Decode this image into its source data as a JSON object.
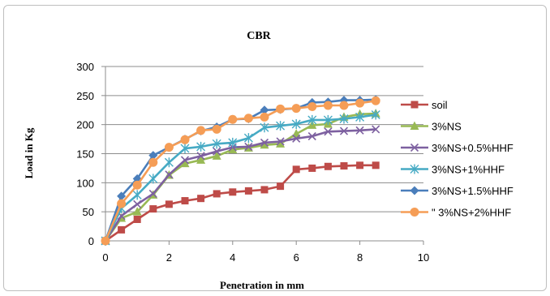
{
  "chart_data": {
    "type": "line",
    "title": "CBR",
    "xlabel": "Penetration in mm",
    "ylabel": "Load in Kg",
    "xlim": [
      0,
      10
    ],
    "ylim": [
      0,
      300
    ],
    "xticks": [
      0,
      2,
      4,
      6,
      8,
      10
    ],
    "yticks": [
      0,
      50,
      100,
      150,
      200,
      250,
      300
    ],
    "grid": "horizontal",
    "legend": "right",
    "series": [
      {
        "name": "soil",
        "color": "#be4b48",
        "marker": "square",
        "x": [
          0,
          0.5,
          1,
          1.5,
          2,
          2.5,
          3,
          3.5,
          4,
          4.5,
          5,
          5.5,
          6,
          6.5,
          7,
          7.5,
          8,
          8.5
        ],
        "y": [
          0,
          19,
          37,
          55,
          63,
          69,
          73,
          81,
          84,
          86,
          88,
          94,
          123,
          125,
          128,
          129,
          130,
          130
        ]
      },
      {
        "name": "3%NS",
        "color": "#98b954",
        "marker": "triangle",
        "x": [
          0,
          0.5,
          1,
          1.5,
          2,
          2.5,
          3,
          3.5,
          4,
          4.5,
          5,
          5.5,
          6,
          6.5,
          7,
          7.5,
          8,
          8.5
        ],
        "y": [
          0,
          39,
          50,
          79,
          113,
          133,
          139,
          146,
          157,
          160,
          165,
          167,
          184,
          199,
          201,
          213,
          218,
          219
        ]
      },
      {
        "name": "3%NS+0.5%HHF",
        "color": "#7d60a0",
        "marker": "x",
        "x": [
          0,
          0.5,
          1,
          1.5,
          2,
          2.5,
          3,
          3.5,
          4,
          4.5,
          5,
          5.5,
          6,
          6.5,
          7,
          7.5,
          8,
          8.5
        ],
        "y": [
          0,
          43,
          63,
          81,
          114,
          139,
          146,
          154,
          161,
          162,
          169,
          171,
          176,
          180,
          188,
          189,
          190,
          192
        ]
      },
      {
        "name": "3%NS+1%HHF",
        "color": "#46aac4",
        "marker": "star",
        "x": [
          0,
          0.5,
          1,
          1.5,
          2,
          2.5,
          3,
          3.5,
          4,
          4.5,
          5,
          5.5,
          6,
          6.5,
          7,
          7.5,
          8,
          8.5
        ],
        "y": [
          0,
          56,
          79,
          107,
          135,
          159,
          162,
          167,
          169,
          177,
          195,
          198,
          201,
          208,
          208,
          210,
          213,
          217
        ]
      },
      {
        "name": "3%NS+1.5%HHF",
        "color": "#4a7ebb",
        "marker": "diamond",
        "x": [
          0,
          0.5,
          1,
          1.5,
          2,
          2.5,
          3,
          3.5,
          4,
          4.5,
          5,
          5.5,
          6,
          6.5,
          7,
          7.5,
          8,
          8.5
        ],
        "y": [
          0,
          77,
          107,
          147,
          161,
          175,
          189,
          196,
          209,
          210,
          225,
          226,
          228,
          238,
          239,
          242,
          242,
          243
        ]
      },
      {
        "name": "\" 3%NS+2%HHF",
        "color": "#f59d56",
        "marker": "circle",
        "x": [
          0,
          0.5,
          1,
          1.5,
          2,
          2.5,
          3,
          3.5,
          4,
          4.5,
          5,
          5.5,
          6,
          6.5,
          7,
          7.5,
          8,
          8.5
        ],
        "y": [
          0,
          64,
          96,
          135,
          161,
          174,
          190,
          192,
          209,
          211,
          213,
          227,
          228,
          231,
          233,
          233,
          237,
          241
        ]
      }
    ]
  }
}
